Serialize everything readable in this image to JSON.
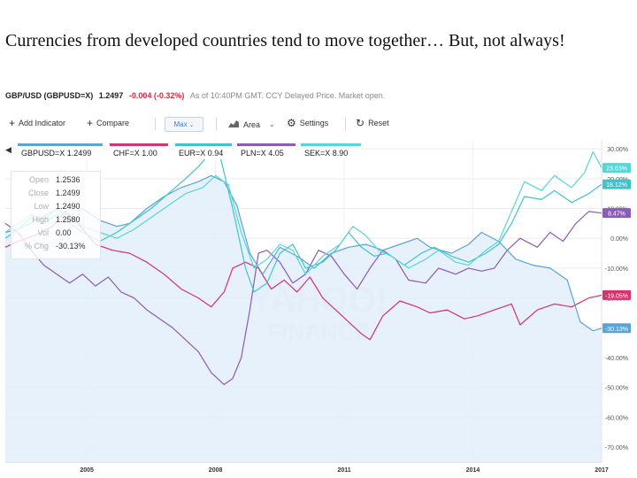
{
  "slide": {
    "title": "Currencies from developed countries tend to move together… But, not always!"
  },
  "quote": {
    "symbol": "GBP/USD (GBPUSD=X)",
    "price": "1.2497",
    "change": "-0.004 (-0.32%)",
    "note": "As of 10:40PM GMT. CCY Delayed Price. Market open."
  },
  "toolbar": {
    "add_indicator": "Add Indicator",
    "compare": "Compare",
    "range": "Max",
    "area": "Area",
    "settings": "Settings",
    "reset": "Reset"
  },
  "tooltip": {
    "rows": [
      {
        "label": "Open",
        "value": "1.2536"
      },
      {
        "label": "Close",
        "value": "1.2499"
      },
      {
        "label": "Low",
        "value": "1.2490"
      },
      {
        "label": "High",
        "value": "1.2580"
      },
      {
        "label": "Vol",
        "value": "0.00"
      },
      {
        "label": "% Chg",
        "value": "-30.13%"
      }
    ]
  },
  "colors": {
    "gbp": "#5ba3d9",
    "chf": "#d6326f",
    "eur": "#3fc4cc",
    "pln": "#8c5ab8",
    "sek": "#57d6d6",
    "area_fill": "#e3eefa"
  },
  "chart_data": {
    "type": "line",
    "x_ticks": [
      "2005",
      "2008",
      "2011",
      "2014",
      "2017"
    ],
    "y_ticks": [
      "30.00%",
      "20.00%",
      "10.00%",
      "0.00%",
      "-10.00%",
      "-20.00%",
      "-30.00%",
      "-40.00%",
      "-50.00%",
      "-60.00%",
      "-70.00%"
    ],
    "ylim": [
      -75,
      33
    ],
    "xlim": [
      2003.1,
      2017.0
    ],
    "watermark_top": "YAHOO!",
    "watermark_bottom": "FINANCE",
    "series": [
      {
        "name": "GBPUSD=X 1.2499",
        "key": "gbp",
        "end_label": "-30.13%",
        "points": [
          [
            2003.1,
            2
          ],
          [
            2003.4,
            3
          ],
          [
            2003.8,
            6
          ],
          [
            2004.2,
            9
          ],
          [
            2004.6,
            11
          ],
          [
            2004.9,
            10
          ],
          [
            2005.3,
            6
          ],
          [
            2005.7,
            4
          ],
          [
            2006.0,
            5
          ],
          [
            2006.4,
            10
          ],
          [
            2006.8,
            14
          ],
          [
            2007.2,
            17
          ],
          [
            2007.6,
            19
          ],
          [
            2007.9,
            21
          ],
          [
            2008.2,
            19
          ],
          [
            2008.5,
            11
          ],
          [
            2008.8,
            -5
          ],
          [
            2009.1,
            -12
          ],
          [
            2009.5,
            -3
          ],
          [
            2009.9,
            -6
          ],
          [
            2010.3,
            -10
          ],
          [
            2010.7,
            -5
          ],
          [
            2011.1,
            -3
          ],
          [
            2011.5,
            -2
          ],
          [
            2011.9,
            -4
          ],
          [
            2012.3,
            -2
          ],
          [
            2012.7,
            0
          ],
          [
            2013.0,
            -3
          ],
          [
            2013.5,
            -5
          ],
          [
            2013.9,
            -2
          ],
          [
            2014.2,
            2
          ],
          [
            2014.6,
            -1
          ],
          [
            2015.0,
            -7
          ],
          [
            2015.4,
            -9
          ],
          [
            2015.8,
            -10
          ],
          [
            2016.2,
            -14
          ],
          [
            2016.5,
            -28
          ],
          [
            2016.8,
            -31
          ],
          [
            2017.0,
            -30.13
          ]
        ]
      },
      {
        "name": "CHF=X 1.00",
        "key": "chf",
        "end_label": "-19.05%",
        "points": [
          [
            2003.1,
            -3
          ],
          [
            2003.4,
            -1
          ],
          [
            2003.8,
            1
          ],
          [
            2004.2,
            4
          ],
          [
            2004.5,
            9
          ],
          [
            2004.8,
            5
          ],
          [
            2005.2,
            -2
          ],
          [
            2005.6,
            -4
          ],
          [
            2006.0,
            -5
          ],
          [
            2006.4,
            -8
          ],
          [
            2006.8,
            -12
          ],
          [
            2007.2,
            -17
          ],
          [
            2007.6,
            -20
          ],
          [
            2007.9,
            -23
          ],
          [
            2008.2,
            -18
          ],
          [
            2008.4,
            -10
          ],
          [
            2008.7,
            -8
          ],
          [
            2009.0,
            -10
          ],
          [
            2009.3,
            -17
          ],
          [
            2009.6,
            -14
          ],
          [
            2009.9,
            -18
          ],
          [
            2010.2,
            -13
          ],
          [
            2010.5,
            -20
          ],
          [
            2010.8,
            -24
          ],
          [
            2011.1,
            -28
          ],
          [
            2011.4,
            -32
          ],
          [
            2011.6,
            -34
          ],
          [
            2011.9,
            -26
          ],
          [
            2012.3,
            -21
          ],
          [
            2012.7,
            -23
          ],
          [
            2013.0,
            -25
          ],
          [
            2013.4,
            -24
          ],
          [
            2013.8,
            -27
          ],
          [
            2014.1,
            -26
          ],
          [
            2014.5,
            -24
          ],
          [
            2014.9,
            -22
          ],
          [
            2015.1,
            -29
          ],
          [
            2015.5,
            -24
          ],
          [
            2015.9,
            -22
          ],
          [
            2016.3,
            -23
          ],
          [
            2016.7,
            -20
          ],
          [
            2017.0,
            -19.05
          ]
        ]
      },
      {
        "name": "EUR=X 0.94",
        "key": "eur",
        "end_label": "18.12%",
        "points": [
          [
            2003.1,
            0
          ],
          [
            2003.4,
            3
          ],
          [
            2003.7,
            7
          ],
          [
            2004.0,
            5
          ],
          [
            2004.3,
            8
          ],
          [
            2004.6,
            5
          ],
          [
            2004.9,
            2
          ],
          [
            2005.3,
            -1
          ],
          [
            2005.7,
            2
          ],
          [
            2006.1,
            6
          ],
          [
            2006.5,
            10
          ],
          [
            2006.9,
            15
          ],
          [
            2007.3,
            20
          ],
          [
            2007.6,
            24
          ],
          [
            2007.9,
            29
          ],
          [
            2008.1,
            28
          ],
          [
            2008.4,
            10
          ],
          [
            2008.7,
            -10
          ],
          [
            2008.9,
            -18
          ],
          [
            2009.2,
            -15
          ],
          [
            2009.5,
            -5
          ],
          [
            2009.8,
            -2
          ],
          [
            2010.1,
            -10
          ],
          [
            2010.5,
            -8
          ],
          [
            2010.8,
            -4
          ],
          [
            2011.1,
            2
          ],
          [
            2011.4,
            -3
          ],
          [
            2011.7,
            -6
          ],
          [
            2012.0,
            -5
          ],
          [
            2012.4,
            -9
          ],
          [
            2012.8,
            -5
          ],
          [
            2013.1,
            -3
          ],
          [
            2013.5,
            -6
          ],
          [
            2013.9,
            -8
          ],
          [
            2014.3,
            -5
          ],
          [
            2014.6,
            -2
          ],
          [
            2014.9,
            5
          ],
          [
            2015.2,
            14
          ],
          [
            2015.6,
            13
          ],
          [
            2015.9,
            16
          ],
          [
            2016.3,
            12
          ],
          [
            2016.7,
            15
          ],
          [
            2017.0,
            18.12
          ]
        ]
      },
      {
        "name": "PLN=X 4.05",
        "key": "pln",
        "end_label": "8.47%",
        "points": [
          [
            2003.1,
            5
          ],
          [
            2003.4,
            2
          ],
          [
            2003.7,
            -4
          ],
          [
            2004.0,
            -9
          ],
          [
            2004.3,
            -12
          ],
          [
            2004.6,
            -15
          ],
          [
            2004.9,
            -12
          ],
          [
            2005.2,
            -16
          ],
          [
            2005.5,
            -13
          ],
          [
            2005.8,
            -18
          ],
          [
            2006.1,
            -20
          ],
          [
            2006.4,
            -24
          ],
          [
            2006.7,
            -27
          ],
          [
            2007.0,
            -30
          ],
          [
            2007.3,
            -34
          ],
          [
            2007.6,
            -38
          ],
          [
            2007.9,
            -45
          ],
          [
            2008.2,
            -49
          ],
          [
            2008.4,
            -47
          ],
          [
            2008.6,
            -40
          ],
          [
            2008.8,
            -24
          ],
          [
            2009.0,
            -5
          ],
          [
            2009.2,
            -4
          ],
          [
            2009.5,
            -8
          ],
          [
            2009.8,
            -15
          ],
          [
            2010.1,
            -12
          ],
          [
            2010.4,
            -4
          ],
          [
            2010.7,
            -6
          ],
          [
            2011.0,
            -12
          ],
          [
            2011.3,
            -17
          ],
          [
            2011.6,
            -10
          ],
          [
            2011.9,
            -4
          ],
          [
            2012.2,
            -7
          ],
          [
            2012.5,
            -14
          ],
          [
            2012.9,
            -15
          ],
          [
            2013.2,
            -10
          ],
          [
            2013.6,
            -12
          ],
          [
            2013.9,
            -10
          ],
          [
            2014.2,
            -11
          ],
          [
            2014.5,
            -10
          ],
          [
            2014.8,
            -4
          ],
          [
            2015.1,
            0
          ],
          [
            2015.5,
            -3
          ],
          [
            2015.8,
            2
          ],
          [
            2016.1,
            -1
          ],
          [
            2016.4,
            5
          ],
          [
            2016.7,
            9
          ],
          [
            2017.0,
            8.47
          ]
        ]
      },
      {
        "name": "SEK=X 8.90",
        "key": "sek",
        "end_label": "23.63%",
        "points": [
          [
            2003.1,
            2
          ],
          [
            2003.4,
            5
          ],
          [
            2003.7,
            8
          ],
          [
            2004.0,
            6
          ],
          [
            2004.3,
            10
          ],
          [
            2004.6,
            7
          ],
          [
            2004.9,
            4
          ],
          [
            2005.3,
            2
          ],
          [
            2005.7,
            0
          ],
          [
            2006.1,
            3
          ],
          [
            2006.5,
            7
          ],
          [
            2006.9,
            11
          ],
          [
            2007.3,
            15
          ],
          [
            2007.7,
            17
          ],
          [
            2008.0,
            21
          ],
          [
            2008.3,
            18
          ],
          [
            2008.6,
            2
          ],
          [
            2008.9,
            -10
          ],
          [
            2009.2,
            -7
          ],
          [
            2009.5,
            -2
          ],
          [
            2009.8,
            -4
          ],
          [
            2010.1,
            -12
          ],
          [
            2010.5,
            -6
          ],
          [
            2010.9,
            -2
          ],
          [
            2011.2,
            4
          ],
          [
            2011.5,
            1
          ],
          [
            2011.8,
            -4
          ],
          [
            2012.1,
            -6
          ],
          [
            2012.5,
            -10
          ],
          [
            2012.9,
            -7
          ],
          [
            2013.2,
            -4
          ],
          [
            2013.6,
            -8
          ],
          [
            2013.9,
            -9
          ],
          [
            2014.3,
            -4
          ],
          [
            2014.6,
            -1
          ],
          [
            2014.9,
            9
          ],
          [
            2015.2,
            19
          ],
          [
            2015.6,
            16
          ],
          [
            2015.9,
            21
          ],
          [
            2016.3,
            17
          ],
          [
            2016.6,
            22
          ],
          [
            2016.8,
            29
          ],
          [
            2017.0,
            23.63
          ]
        ]
      }
    ]
  }
}
